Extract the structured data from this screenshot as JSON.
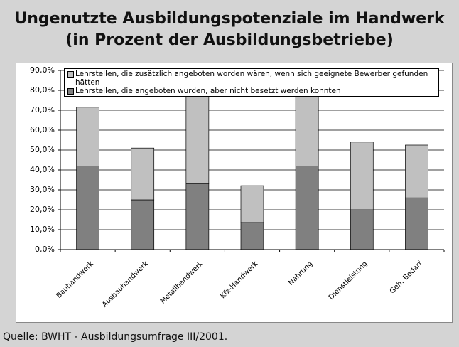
{
  "chart_data": {
    "type": "bar",
    "stacked": true,
    "title": "Ungenutzte Ausbildungspotenziale im Handwerk\n(in Prozent der Ausbildungsbetriebe)",
    "source": "Quelle: BWHT - Ausbildungsumfrage III/2001.",
    "categories": [
      "Bauhandwerk",
      "Ausbauhandwerk",
      "Metallhandwerk",
      "Kfz-Handwerk",
      "Nahrung",
      "Dienstleistung",
      "Geh. Bedarf"
    ],
    "series": [
      {
        "name": "Lehrstellen, die angeboten wurden, aber nicht besetzt werden konnten",
        "color": "#808080",
        "values": [
          42,
          25,
          33,
          13.6,
          42,
          20,
          26
        ]
      },
      {
        "name": "Lehrstellen, die zusätzlich angeboten worden wären, wenn sich geeignete Bewerber gefunden hätten",
        "color": "#c0c0c0",
        "values": [
          29.5,
          26,
          45,
          18.5,
          38,
          34,
          26.5
        ]
      }
    ],
    "ylim": [
      0,
      90
    ],
    "yticks": [
      {
        "value": 0,
        "label": "0,0%"
      },
      {
        "value": 10,
        "label": "10,0%"
      },
      {
        "value": 20,
        "label": "20,0%"
      },
      {
        "value": 30,
        "label": "30,0%"
      },
      {
        "value": 40,
        "label": "40,0%"
      },
      {
        "value": 50,
        "label": "50,0%"
      },
      {
        "value": 60,
        "label": "60,0%"
      },
      {
        "value": 70,
        "label": "70,0%"
      },
      {
        "value": 80,
        "label": "80,0%"
      },
      {
        "value": 90,
        "label": "90,0%"
      }
    ],
    "grid": true
  }
}
